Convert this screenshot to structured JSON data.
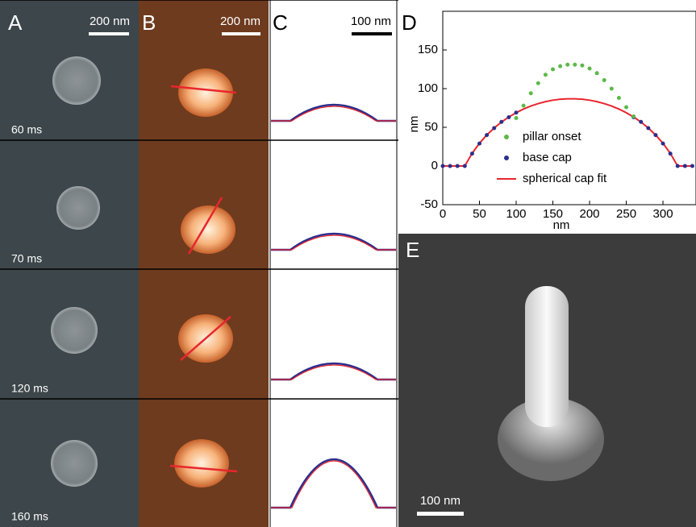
{
  "panels": {
    "A": {
      "label": "A",
      "scale_bar": "200 nm",
      "times": [
        "60 ms",
        "70 ms",
        "120 ms",
        "160 ms"
      ]
    },
    "B": {
      "label": "B",
      "scale_bar": "200 nm"
    },
    "C": {
      "label": "C",
      "scale_bar": "100 nm"
    },
    "D": {
      "label": "D"
    },
    "E": {
      "label": "E",
      "scale_bar": "100 nm"
    }
  },
  "chart_data": {
    "type": "scatter",
    "x_label": "nm",
    "y_label": "nm",
    "x": [
      0,
      10,
      20,
      30,
      40,
      50,
      60,
      70,
      80,
      90,
      100,
      110,
      120,
      130,
      140,
      150,
      160,
      170,
      180,
      190,
      200,
      210,
      220,
      230,
      240,
      250,
      260,
      270,
      280,
      290,
      300,
      310,
      320,
      330,
      340
    ],
    "series": [
      {
        "name": "pillar onset",
        "color": "#5bb947",
        "style": "dots",
        "values": [
          null,
          null,
          null,
          null,
          null,
          null,
          null,
          null,
          null,
          null,
          62,
          78,
          94,
          107,
          118,
          125,
          129,
          131,
          131,
          130,
          126,
          120,
          111,
          100,
          88,
          76,
          64,
          null,
          null,
          null,
          null,
          null,
          null,
          null,
          null
        ]
      },
      {
        "name": "base cap",
        "color": "#2b2e8c",
        "style": "dots",
        "values": [
          0,
          0,
          0,
          0,
          16,
          29,
          40,
          49,
          57,
          63,
          69,
          null,
          null,
          null,
          null,
          null,
          null,
          null,
          null,
          null,
          null,
          null,
          null,
          null,
          null,
          null,
          63,
          57,
          49,
          40,
          29,
          16,
          0,
          0,
          0
        ]
      },
      {
        "name": "spherical cap fit",
        "color": "#e8262d",
        "style": "line",
        "values": [
          0,
          0,
          0,
          0,
          16.4,
          29.4,
          40.1,
          49.1,
          56.8,
          63.3,
          68.9,
          73.6,
          77.5,
          80.7,
          83.2,
          85.1,
          86.3,
          86.9,
          86.9,
          86.3,
          85.1,
          83.2,
          80.7,
          77.5,
          73.6,
          68.9,
          63.3,
          56.8,
          49.1,
          40.1,
          29.4,
          16.4,
          0,
          0,
          0
        ]
      }
    ],
    "xlim": [
      0,
      345
    ],
    "ylim": [
      -50,
      200
    ],
    "xticks": [
      0,
      50,
      100,
      150,
      200,
      250,
      300
    ],
    "yticks": [
      -50,
      0,
      50,
      100,
      150
    ],
    "legend": "center"
  }
}
